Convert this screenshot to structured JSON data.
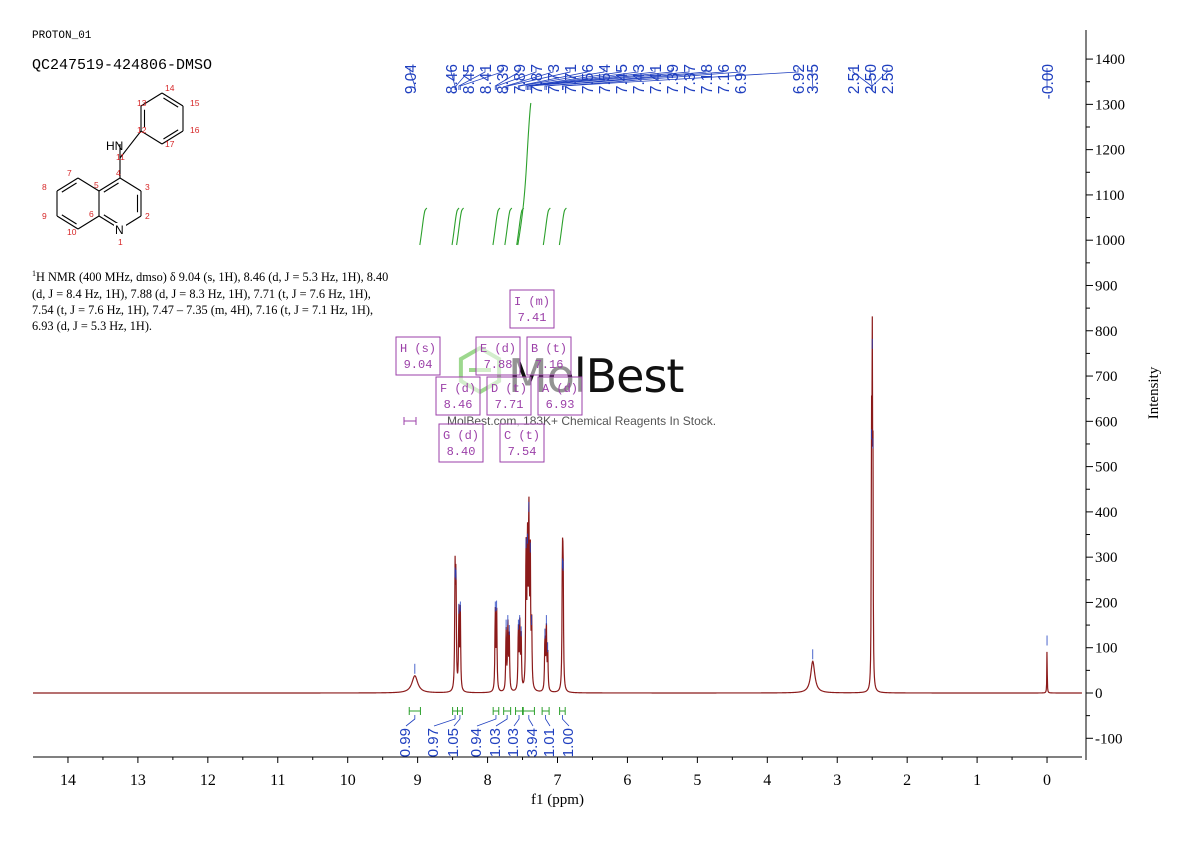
{
  "header": {
    "experiment": "PROTON_01",
    "sample": "QC247519-424806-DMSO"
  },
  "description": {
    "text": "H NMR (400 MHz, dmso) δ 9.04 (s, 1H), 8.46 (d, J = 5.3 Hz, 1H), 8.40 (d, J = 8.4 Hz, 1H), 7.88 (d, J = 8.3 Hz, 1H), 7.71 (t, J = 7.6 Hz, 1H), 7.54 (t, J = 7.6 Hz, 1H), 7.47 – 7.35 (m, 4H), 7.16 (t, J = 7.1 Hz, 1H), 6.93 (d, J = 5.3 Hz, 1H).",
    "nucleus_mass": "1"
  },
  "structure": {
    "nh_label": "HN",
    "n_label": "N",
    "atom_numbers": [
      "1",
      "2",
      "3",
      "4",
      "5",
      "6",
      "7",
      "8",
      "9",
      "10",
      "11",
      "12",
      "13",
      "14",
      "15",
      "16",
      "17"
    ]
  },
  "watermark": {
    "brand": "MolBest",
    "tagline": "MolBest.com, 183K+ Chemical Reagents In Stock."
  },
  "colors": {
    "spectrum": "#8b1a1a",
    "integral": "#2ca02c",
    "peak_label": "#1f3fbf",
    "multiplet_box": "#9b3fa8",
    "atom_number": "#d62728"
  },
  "chart_data": {
    "type": "line",
    "xlabel": "f1 (ppm)",
    "ylabel": "Intensity",
    "xlim": [
      14.5,
      -0.5
    ],
    "ylim": [
      -150,
      1450
    ],
    "x_ticks": [
      14,
      13,
      12,
      11,
      10,
      9,
      8,
      7,
      6,
      5,
      4,
      3,
      2,
      1,
      0
    ],
    "y_ticks": [
      1400,
      1300,
      1200,
      1100,
      1000,
      900,
      800,
      700,
      600,
      500,
      400,
      300,
      200,
      100,
      0,
      -100
    ],
    "peak_labels": [
      "9.04",
      "8.46",
      "8.45",
      "8.41",
      "8.39",
      "7.89",
      "7.87",
      "7.73",
      "7.71",
      "7.56",
      "7.54",
      "7.45",
      "7.43",
      "7.41",
      "7.39",
      "7.37",
      "7.18",
      "7.16",
      "6.93",
      "6.92",
      "3.35",
      "2.51",
      "2.50",
      "2.50",
      "-0.00"
    ],
    "peaks": [
      {
        "ppm": 9.04,
        "height": 38,
        "width": 0.05
      },
      {
        "ppm": 8.465,
        "height": 255,
        "width": 0.006
      },
      {
        "ppm": 8.452,
        "height": 250,
        "width": 0.006
      },
      {
        "ppm": 8.41,
        "height": 175,
        "width": 0.006
      },
      {
        "ppm": 8.39,
        "height": 180,
        "width": 0.006
      },
      {
        "ppm": 7.89,
        "height": 180,
        "width": 0.006
      },
      {
        "ppm": 7.87,
        "height": 182,
        "width": 0.006
      },
      {
        "ppm": 7.735,
        "height": 140,
        "width": 0.006
      },
      {
        "ppm": 7.71,
        "height": 150,
        "width": 0.006
      },
      {
        "ppm": 7.69,
        "height": 128,
        "width": 0.006
      },
      {
        "ppm": 7.56,
        "height": 140,
        "width": 0.006
      },
      {
        "ppm": 7.54,
        "height": 150,
        "width": 0.006
      },
      {
        "ppm": 7.52,
        "height": 125,
        "width": 0.006
      },
      {
        "ppm": 7.45,
        "height": 320,
        "width": 0.006
      },
      {
        "ppm": 7.43,
        "height": 330,
        "width": 0.006
      },
      {
        "ppm": 7.41,
        "height": 400,
        "width": 0.006
      },
      {
        "ppm": 7.39,
        "height": 310,
        "width": 0.006
      },
      {
        "ppm": 7.37,
        "height": 150,
        "width": 0.006
      },
      {
        "ppm": 7.18,
        "height": 120,
        "width": 0.006
      },
      {
        "ppm": 7.16,
        "height": 150,
        "width": 0.006
      },
      {
        "ppm": 7.14,
        "height": 90,
        "width": 0.006
      },
      {
        "ppm": 6.93,
        "height": 275,
        "width": 0.006
      },
      {
        "ppm": 6.92,
        "height": 270,
        "width": 0.006
      },
      {
        "ppm": 3.35,
        "height": 70,
        "width": 0.035
      },
      {
        "ppm": 2.51,
        "height": 560,
        "width": 0.004
      },
      {
        "ppm": 2.5,
        "height": 760,
        "width": 0.004
      },
      {
        "ppm": 2.49,
        "height": 540,
        "width": 0.004
      },
      {
        "ppm": 0.0,
        "height": 105,
        "width": 0.003
      }
    ],
    "integrals": [
      {
        "from": 9.12,
        "to": 8.96,
        "value": "0.99"
      },
      {
        "from": 8.5,
        "to": 8.43,
        "value": "0.97"
      },
      {
        "from": 8.43,
        "to": 8.36,
        "value": "1.05"
      },
      {
        "from": 7.92,
        "to": 7.84,
        "value": "0.94"
      },
      {
        "from": 7.77,
        "to": 7.67,
        "value": "1.03"
      },
      {
        "from": 7.6,
        "to": 7.5,
        "value": "1.03"
      },
      {
        "from": 7.49,
        "to": 7.33,
        "value": "3.94"
      },
      {
        "from": 7.22,
        "to": 7.12,
        "value": "1.01"
      },
      {
        "from": 6.97,
        "to": 6.89,
        "value": "1.00"
      }
    ],
    "multiplets": [
      {
        "name": "I",
        "type": "(m)",
        "shift": "7.41"
      },
      {
        "name": "H",
        "type": "(s)",
        "shift": "9.04"
      },
      {
        "name": "E",
        "type": "(d)",
        "shift": "7.88"
      },
      {
        "name": "B",
        "type": "(t)",
        "shift": "7.16"
      },
      {
        "name": "F",
        "type": "(d)",
        "shift": "8.46"
      },
      {
        "name": "D",
        "type": "(t)",
        "shift": "7.71"
      },
      {
        "name": "A",
        "type": "(d)",
        "shift": "6.93"
      },
      {
        "name": "G",
        "type": "(d)",
        "shift": "8.40"
      },
      {
        "name": "C",
        "type": "(t)",
        "shift": "7.54"
      }
    ]
  }
}
